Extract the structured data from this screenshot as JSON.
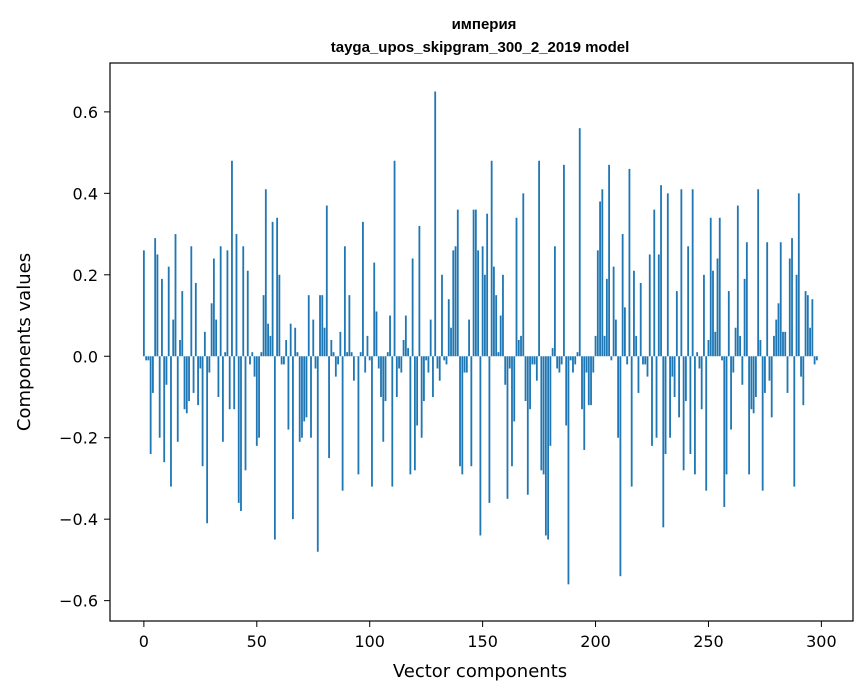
{
  "chart_data": {
    "type": "bar",
    "title": "империя",
    "subtitle": "tayga_upos_skipgram_300_2_2019 model",
    "xlabel": "Vector components",
    "ylabel": "Components values",
    "xlim": [
      -15,
      314
    ],
    "ylim": [
      -0.65,
      0.72
    ],
    "xticks": [
      0,
      50,
      100,
      150,
      200,
      250,
      300
    ],
    "yticks": [
      -0.6,
      -0.4,
      -0.2,
      0.0,
      0.2,
      0.4,
      0.6
    ],
    "xtick_labels": [
      "0",
      "50",
      "100",
      "150",
      "200",
      "250",
      "300"
    ],
    "ytick_labels": [
      "−0.6",
      "−0.4",
      "−0.2",
      "0.0",
      "0.2",
      "0.4",
      "0.6"
    ],
    "bar_color": "#1f77b4",
    "grid": false,
    "values": [
      0.26,
      -0.01,
      -0.01,
      -0.24,
      -0.09,
      0.29,
      0.25,
      -0.2,
      0.19,
      -0.26,
      -0.07,
      0.22,
      -0.32,
      0.09,
      0.3,
      -0.21,
      0.04,
      0.16,
      -0.13,
      -0.14,
      -0.11,
      0.27,
      -0.09,
      0.18,
      -0.12,
      -0.03,
      -0.27,
      0.06,
      -0.41,
      -0.04,
      0.13,
      0.24,
      0.09,
      -0.1,
      0.27,
      -0.21,
      0.01,
      0.26,
      -0.13,
      0.48,
      -0.13,
      0.3,
      -0.36,
      -0.38,
      0.27,
      -0.28,
      0.21,
      -0.02,
      0.01,
      -0.05,
      -0.22,
      -0.2,
      0.01,
      0.15,
      0.41,
      0.08,
      0.05,
      0.33,
      -0.45,
      0.34,
      0.2,
      -0.02,
      -0.02,
      0.04,
      -0.18,
      0.08,
      -0.4,
      0.07,
      0.01,
      -0.21,
      -0.2,
      -0.16,
      -0.15,
      0.15,
      -0.2,
      0.09,
      -0.03,
      -0.48,
      0.15,
      0.15,
      0.07,
      0.37,
      -0.25,
      0.04,
      0.01,
      -0.05,
      -0.02,
      0.06,
      -0.33,
      0.27,
      0.01,
      0.15,
      0.01,
      -0.06,
      0.0,
      -0.29,
      0.01,
      0.33,
      -0.04,
      0.05,
      -0.01,
      -0.32,
      0.23,
      0.11,
      -0.03,
      -0.1,
      -0.21,
      -0.11,
      0.01,
      0.1,
      -0.32,
      0.48,
      -0.1,
      -0.03,
      -0.04,
      0.04,
      0.1,
      0.02,
      -0.29,
      0.24,
      -0.28,
      -0.17,
      0.32,
      -0.2,
      -0.11,
      -0.01,
      -0.04,
      0.09,
      -0.1,
      0.65,
      -0.03,
      -0.06,
      0.2,
      -0.01,
      -0.02,
      0.14,
      0.07,
      0.26,
      0.27,
      0.36,
      -0.27,
      -0.29,
      -0.04,
      -0.04,
      0.09,
      -0.27,
      0.36,
      0.36,
      0.26,
      -0.44,
      0.27,
      0.2,
      0.35,
      -0.36,
      0.48,
      0.22,
      0.15,
      0.01,
      0.1,
      0.2,
      -0.07,
      -0.35,
      -0.03,
      -0.27,
      -0.16,
      0.34,
      0.04,
      0.05,
      0.4,
      -0.11,
      -0.34,
      -0.13,
      -0.02,
      -0.02,
      -0.06,
      0.48,
      -0.28,
      -0.29,
      -0.44,
      -0.45,
      -0.22,
      0.02,
      0.27,
      -0.03,
      -0.04,
      -0.02,
      0.47,
      -0.17,
      -0.56,
      -0.01,
      -0.04,
      -0.02,
      0.01,
      0.56,
      -0.13,
      -0.23,
      -0.04,
      -0.12,
      -0.12,
      -0.04,
      0.05,
      0.26,
      0.38,
      0.41,
      0.05,
      0.19,
      0.47,
      -0.01,
      0.22,
      0.09,
      -0.2,
      -0.54,
      0.3,
      0.12,
      -0.02,
      0.46,
      -0.32,
      0.21,
      0.05,
      -0.09,
      0.18,
      -0.02,
      -0.02,
      -0.05,
      0.25,
      -0.22,
      0.36,
      -0.2,
      0.25,
      0.42,
      -0.42,
      -0.24,
      0.4,
      -0.2,
      -0.05,
      -0.1,
      0.16,
      -0.15,
      0.41,
      -0.28,
      -0.11,
      0.27,
      -0.24,
      0.41,
      -0.29,
      0.01,
      -0.03,
      -0.13,
      0.2,
      -0.33,
      0.04,
      0.34,
      0.21,
      0.06,
      0.24,
      0.34,
      -0.01,
      -0.37,
      -0.29,
      0.16,
      -0.18,
      -0.04,
      0.07,
      0.37,
      0.05,
      -0.07,
      0.19,
      0.28,
      -0.29,
      -0.13,
      -0.14,
      -0.1,
      0.41,
      0.04,
      -0.33,
      -0.09,
      0.28,
      -0.06,
      -0.15,
      0.05,
      0.09,
      0.13,
      0.28,
      0.06,
      0.06,
      -0.09,
      0.24,
      0.29,
      -0.32,
      0.2,
      0.4,
      -0.05,
      -0.12,
      0.16,
      0.15,
      0.07,
      0.14,
      -0.02,
      -0.01
    ]
  }
}
